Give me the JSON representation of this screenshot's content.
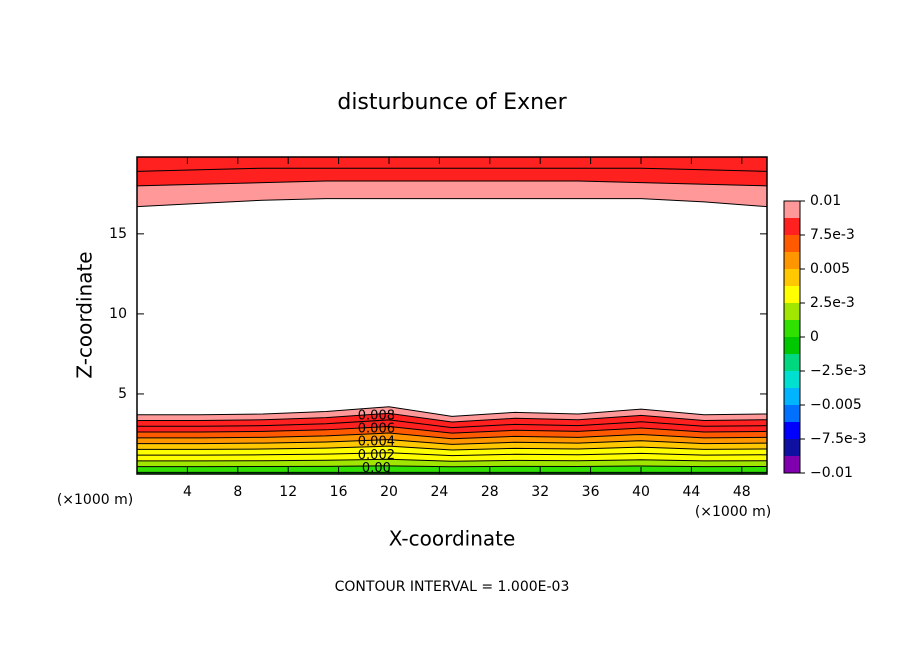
{
  "chart_data": {
    "type": "contour",
    "title": "disturbunce of Exner",
    "x_label": "X-coordinate",
    "y_label": "Z-coordinate",
    "x_unit": "(×1000 m)",
    "y_unit": "(×1000 m)",
    "footer": "CONTOUR INTERVAL = 1.000E-03",
    "xlim": [
      0,
      50
    ],
    "ylim": [
      0,
      19.8
    ],
    "xticks": [
      4,
      8,
      12,
      16,
      20,
      24,
      28,
      32,
      36,
      40,
      44,
      48
    ],
    "yticks": [
      5,
      10,
      15
    ],
    "x": [
      0,
      5,
      10,
      15,
      20,
      25,
      30,
      35,
      40,
      45,
      50
    ],
    "below_value": -0.0005,
    "top_value": 0.0075,
    "contours": [
      {
        "level": 0,
        "label": "0.00",
        "heights": [
          0.1,
          0.1,
          0.1,
          0.1,
          0.1,
          0.1,
          0.1,
          0.1,
          0.1,
          0.1,
          0.1
        ]
      },
      {
        "level": 0.001,
        "heights": [
          0.46,
          0.46,
          0.47,
          0.48,
          0.51,
          0.45,
          0.48,
          0.47,
          0.5,
          0.46,
          0.47
        ]
      },
      {
        "level": 0.002,
        "label": "0.002",
        "heights": [
          0.82,
          0.82,
          0.83,
          0.86,
          0.92,
          0.8,
          0.85,
          0.83,
          0.89,
          0.82,
          0.83
        ]
      },
      {
        "level": 0.003,
        "heights": [
          1.18,
          1.18,
          1.2,
          1.24,
          1.33,
          1.15,
          1.23,
          1.2,
          1.29,
          1.18,
          1.2
        ]
      },
      {
        "level": 0.004,
        "label": "0.004",
        "heights": [
          1.54,
          1.54,
          1.56,
          1.62,
          1.74,
          1.5,
          1.6,
          1.56,
          1.68,
          1.54,
          1.56
        ]
      },
      {
        "level": 0.005,
        "heights": [
          1.9,
          1.9,
          1.93,
          2,
          2.15,
          1.85,
          1.98,
          1.93,
          2.08,
          1.9,
          1.93
        ]
      },
      {
        "level": 0.006,
        "label": "0.006",
        "heights": [
          2.26,
          2.26,
          2.29,
          2.38,
          2.56,
          2.2,
          2.35,
          2.29,
          2.47,
          2.26,
          2.29
        ]
      },
      {
        "level": 0.007,
        "heights": [
          2.62,
          2.62,
          2.66,
          2.76,
          2.97,
          2.55,
          2.73,
          2.66,
          2.87,
          2.62,
          2.66
        ]
      },
      {
        "level": 0.008,
        "label": "0.008",
        "heights": [
          2.98,
          2.98,
          3.02,
          3.14,
          3.38,
          2.9,
          3.1,
          3.02,
          3.26,
          2.98,
          3.02
        ]
      },
      {
        "level": 0.009,
        "heights": [
          3.34,
          3.34,
          3.39,
          3.52,
          3.79,
          3.25,
          3.48,
          3.39,
          3.66,
          3.34,
          3.39
        ]
      },
      {
        "level": 0.01,
        "heights": [
          3.7,
          3.7,
          3.75,
          3.9,
          4.2,
          3.6,
          3.85,
          3.75,
          4.05,
          3.7,
          3.75
        ]
      }
    ],
    "top_contours": [
      {
        "level": 0.01,
        "heights": [
          16.7,
          16.9,
          17.1,
          17.2,
          17.2,
          17.2,
          17.2,
          17.2,
          17.2,
          17,
          16.7
        ]
      },
      {
        "level": 0.009,
        "heights": [
          18,
          18.1,
          18.2,
          18.3,
          18.3,
          18.3,
          18.3,
          18.3,
          18.2,
          18.1,
          18
        ]
      },
      {
        "level": 0.008,
        "heights": [
          18.9,
          19,
          19.1,
          19.1,
          19.1,
          19.1,
          19.1,
          19.1,
          19.1,
          19,
          18.9
        ]
      }
    ],
    "colorbar": {
      "levels": [
        -0.01,
        -0.00875,
        -0.0075,
        -0.00625,
        -0.005,
        -0.00375,
        -0.0025,
        -0.00125,
        0,
        0.00125,
        0.0025,
        0.00375,
        0.005,
        0.00625,
        0.0075,
        0.00875,
        0.01
      ],
      "colors": [
        "#8000b0",
        "#1010a0",
        "#0000ff",
        "#0070ff",
        "#00b4ff",
        "#00e0d0",
        "#00d880",
        "#00c800",
        "#30e000",
        "#a0e600",
        "#ffff00",
        "#ffc800",
        "#ff9600",
        "#ff5a00",
        "#ff2020",
        "#ff9999"
      ],
      "ticks": [
        0.01,
        {
          "value": 0.0075,
          "label": "7.5e-3"
        },
        0.005,
        {
          "value": 0.0025,
          "label": "2.5e-3"
        },
        0,
        {
          "value": -0.0025,
          "label": "−2.5e-3"
        },
        {
          "value": -0.005,
          "label": "−0.005"
        },
        {
          "value": -0.0075,
          "label": "−7.5e-3"
        },
        {
          "value": -0.01,
          "label": "−0.01"
        }
      ]
    }
  }
}
